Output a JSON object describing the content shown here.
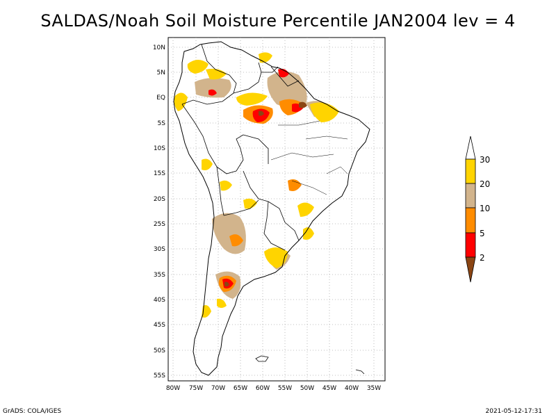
{
  "title": "SALDAS/Noah Soil Moisture Percentile JAN2004 lev = 4",
  "footer": {
    "left": "GrADS: COLA/IGES",
    "right": "2021-05-12-17:31"
  },
  "map": {
    "lat_labels": [
      "10N",
      "5N",
      "EQ",
      "5S",
      "10S",
      "15S",
      "20S",
      "25S",
      "30S",
      "35S",
      "40S",
      "45S",
      "50S",
      "55S"
    ],
    "lon_labels": [
      "80W",
      "75W",
      "70W",
      "65W",
      "60W",
      "55W",
      "50W",
      "45W",
      "40W",
      "35W"
    ]
  },
  "legend": {
    "labels": [
      "30",
      "20",
      "10",
      "5",
      "2"
    ],
    "colors": {
      "above30": "#ffffff",
      "c20_30": "#ffd400",
      "c10_20": "#d2b48c",
      "c5_10": "#ff8c00",
      "c2_5": "#ff0000",
      "below2": "#8b4513"
    }
  }
}
